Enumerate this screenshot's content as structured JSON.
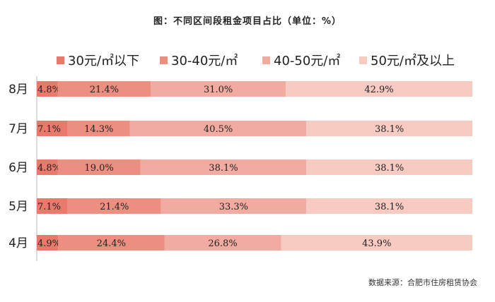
{
  "chart_data": {
    "type": "bar",
    "orientation": "horizontal",
    "stacked": true,
    "title": "图：不同区间段租金项目占比（单位：%）",
    "categories": [
      "8月",
      "7月",
      "6月",
      "5月",
      "4月"
    ],
    "series": [
      {
        "name": "30元/㎡以下",
        "color": "#e8796b",
        "values": [
          4.8,
          7.1,
          4.8,
          7.1,
          4.9
        ]
      },
      {
        "name": "30-40元/㎡",
        "color": "#ec8e80",
        "values": [
          21.4,
          14.3,
          19.0,
          21.4,
          24.4
        ]
      },
      {
        "name": "40-50元/㎡",
        "color": "#f2aba0",
        "values": [
          31.0,
          40.5,
          38.1,
          33.3,
          26.8
        ]
      },
      {
        "name": "50元/㎡及以上",
        "color": "#f7cac2",
        "values": [
          42.9,
          38.1,
          38.1,
          38.1,
          43.9
        ]
      }
    ],
    "legend_position": "top",
    "grid": false
  },
  "footer": {
    "source": "数据来源：合肥市住房租赁协会"
  }
}
